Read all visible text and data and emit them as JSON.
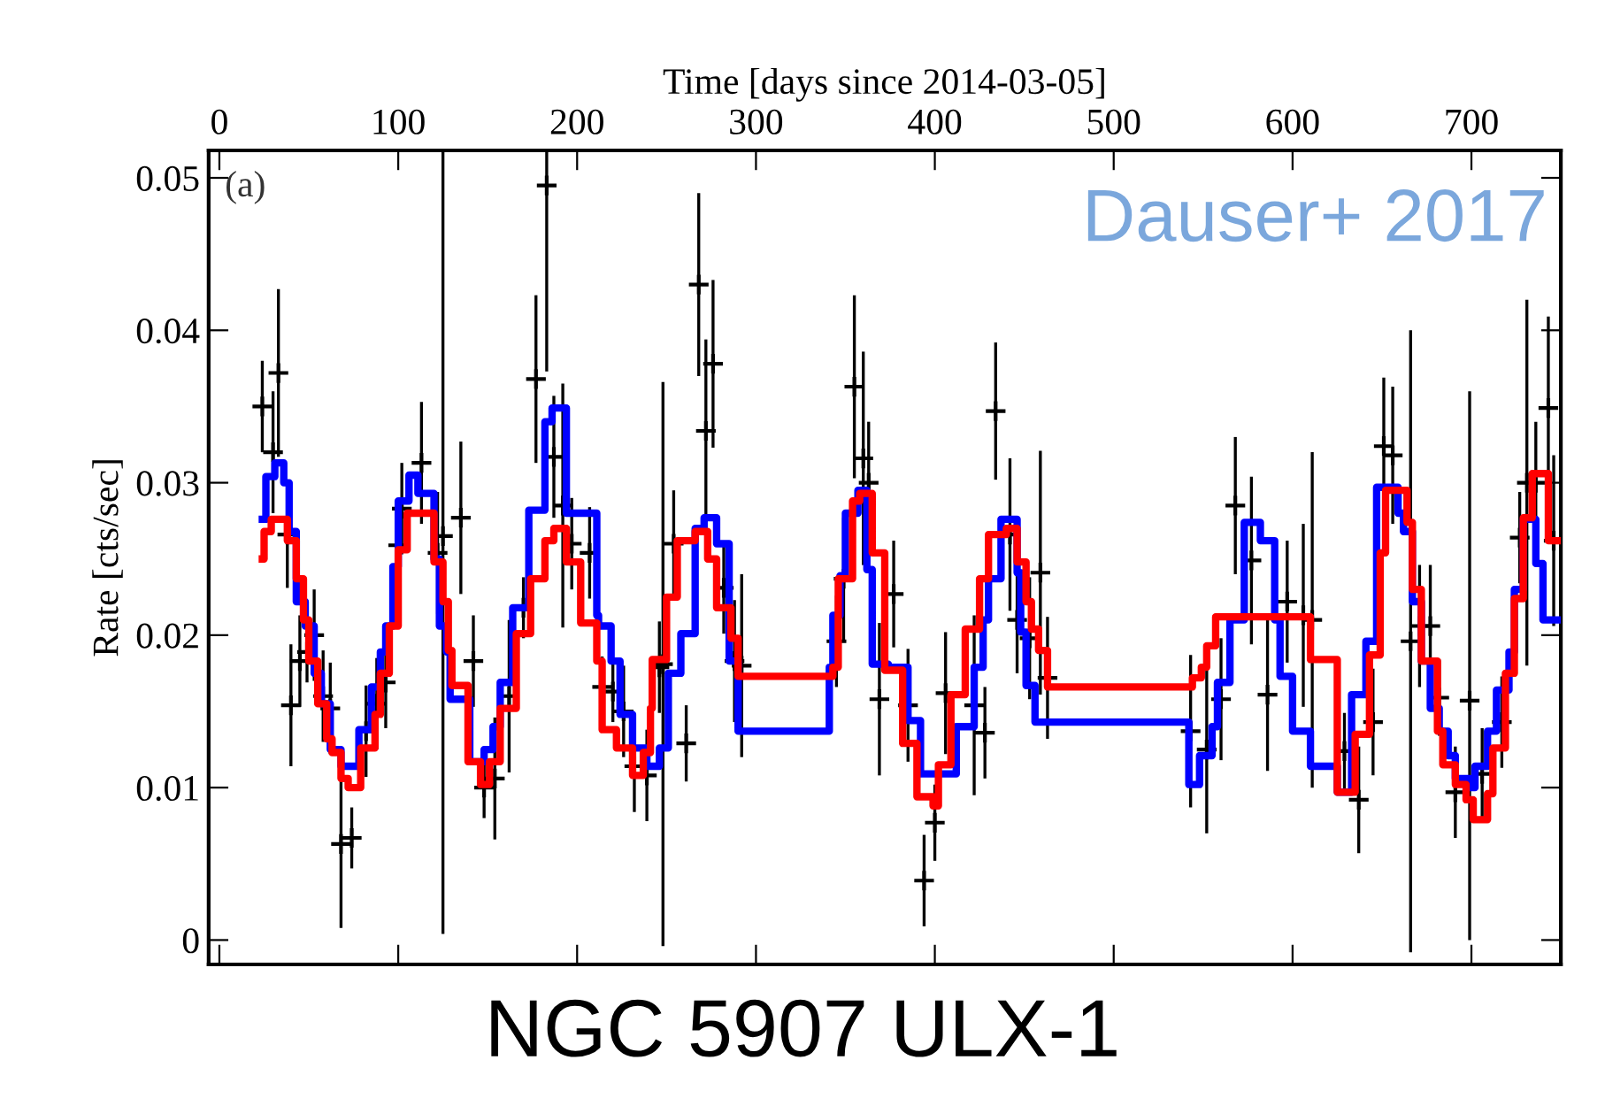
{
  "chart_data": {
    "type": "step",
    "title": "NGC 5907 ULX-1",
    "xlabel": "Time [days since 2014-03-05]",
    "ylabel": "Rate [cts/sec]",
    "annotations": [
      "(a)",
      "Dauser+ 2017"
    ],
    "xlim": [
      -6,
      750
    ],
    "xticks": [
      0,
      100,
      200,
      300,
      400,
      500,
      600,
      700
    ],
    "ylim": [
      -0.0016,
      0.0518
    ],
    "yticks": [
      0,
      0.01,
      0.02,
      0.03,
      0.04,
      0.05
    ],
    "grid": false,
    "marker": "none",
    "series": [
      {
        "color": "#0000ff",
        "x": [
          24,
          26,
          31,
          36,
          39,
          43,
          48,
          53,
          57,
          62,
          68,
          78,
          85,
          90,
          93,
          97,
          100,
          106,
          111,
          120,
          123,
          127,
          129,
          140,
          148,
          153,
          157,
          164,
          173,
          182,
          186,
          194,
          204,
          211,
          212,
          219,
          224,
          231,
          239,
          246,
          251,
          258,
          266,
          271,
          278,
          285,
          290,
          341,
          343,
          347,
          350,
          357,
          362,
          365,
          374,
          385,
          392,
          399,
          412,
          422,
          427,
          430,
          437,
          446,
          448,
          451,
          456,
          461,
          542,
          548,
          555,
          558,
          565,
          573,
          582,
          590,
          593,
          600,
          610,
          625,
          633,
          641,
          647,
          659,
          662,
          667,
          672,
          677,
          682,
          687,
          691,
          699,
          702,
          709,
          714,
          721,
          724,
          729,
          736,
          740,
          745,
          748
        ],
        "values": [
          0.0276,
          0.0304,
          0.0313,
          0.03,
          0.0268,
          0.0222,
          0.0206,
          0.0175,
          0.0155,
          0.0125,
          0.0114,
          0.0138,
          0.0166,
          0.0189,
          0.0206,
          0.0245,
          0.0288,
          0.0305,
          0.0293,
          0.025,
          0.0206,
          0.0189,
          0.0158,
          0.0117,
          0.0125,
          0.014,
          0.0169,
          0.0218,
          0.0282,
          0.034,
          0.0349,
          0.028,
          0.028,
          0.0213,
          0.0206,
          0.0183,
          0.0148,
          0.0126,
          0.0114,
          0.0126,
          0.0175,
          0.0201,
          0.027,
          0.0277,
          0.026,
          0.0183,
          0.0137,
          0.0179,
          0.0213,
          0.0239,
          0.028,
          0.0295,
          0.0243,
          0.0181,
          0.0179,
          0.0144,
          0.0109,
          0.0109,
          0.014,
          0.0179,
          0.021,
          0.0237,
          0.0276,
          0.0241,
          0.0202,
          0.0167,
          0.0143,
          0.0143,
          0.0102,
          0.0121,
          0.014,
          0.0169,
          0.021,
          0.0274,
          0.0262,
          0.021,
          0.0173,
          0.0137,
          0.0114,
          0.0097,
          0.0161,
          0.0196,
          0.0297,
          0.028,
          0.0268,
          0.0222,
          0.0183,
          0.0152,
          0.0137,
          0.0121,
          0.0106,
          0.01,
          0.0114,
          0.0137,
          0.0164,
          0.0189,
          0.023,
          0.0276,
          0.0247,
          0.021,
          0.021,
          0.021
        ]
      },
      {
        "color": "#ff0000",
        "x": [
          24,
          25,
          29,
          38,
          43,
          47,
          50,
          55,
          60,
          63,
          68,
          72,
          79,
          87,
          90,
          95,
          100,
          105,
          120,
          125,
          128,
          130,
          139,
          146,
          151,
          157,
          166,
          174,
          182,
          187,
          194,
          202,
          211,
          214,
          222,
          231,
          237,
          241,
          242,
          250,
          256,
          266,
          273,
          278,
          286,
          290,
          343,
          346,
          354,
          358,
          365,
          372,
          382,
          390,
          399,
          402,
          409,
          417,
          425,
          430,
          440,
          446,
          451,
          454,
          458,
          463,
          544,
          549,
          552,
          557,
          610,
          625,
          635,
          643,
          649,
          652,
          664,
          667,
          672,
          681,
          684,
          691,
          697,
          701,
          709,
          712,
          719,
          724,
          729,
          734,
          743,
          748
        ],
        "values": [
          0.025,
          0.0268,
          0.0276,
          0.0262,
          0.0237,
          0.021,
          0.0183,
          0.0155,
          0.0132,
          0.0123,
          0.0106,
          0.01,
          0.0126,
          0.0148,
          0.0175,
          0.0206,
          0.0256,
          0.028,
          0.0248,
          0.0222,
          0.019,
          0.0167,
          0.0117,
          0.0102,
          0.0117,
          0.0152,
          0.0201,
          0.0237,
          0.0262,
          0.027,
          0.0248,
          0.0208,
          0.0183,
          0.0138,
          0.0126,
          0.0108,
          0.0123,
          0.0152,
          0.0184,
          0.0225,
          0.0262,
          0.0268,
          0.025,
          0.0218,
          0.0198,
          0.0173,
          0.0179,
          0.0237,
          0.0288,
          0.0293,
          0.0254,
          0.0177,
          0.0129,
          0.0094,
          0.0088,
          0.0115,
          0.0161,
          0.0204,
          0.0237,
          0.0266,
          0.027,
          0.0248,
          0.0222,
          0.0204,
          0.019,
          0.0166,
          0.0172,
          0.0179,
          0.0193,
          0.0212,
          0.0184,
          0.0097,
          0.0135,
          0.0187,
          0.0254,
          0.0295,
          0.0274,
          0.023,
          0.0183,
          0.0137,
          0.0115,
          0.0102,
          0.0092,
          0.0079,
          0.0096,
          0.0126,
          0.0175,
          0.0224,
          0.0277,
          0.0306,
          0.0262,
          0.0262
        ]
      },
      {
        "type": "scatter",
        "color": "#000000",
        "marker": "cross",
        "x": [
          24,
          30,
          33,
          38,
          40,
          45,
          49,
          53,
          58,
          62,
          68,
          74,
          82,
          88,
          93,
          100,
          102,
          113,
          122,
          125,
          135,
          142,
          148,
          154,
          162,
          170,
          177,
          183,
          187,
          192,
          197,
          207,
          214,
          220,
          226,
          232,
          239,
          246,
          248,
          254,
          261,
          268,
          272,
          276,
          282,
          288,
          292,
          345,
          349,
          355,
          360,
          363,
          369,
          377,
          385,
          394,
          400,
          406,
          422,
          428,
          434,
          442,
          446,
          453,
          459,
          463,
          543,
          552,
          560,
          568,
          577,
          586,
          597,
          606,
          611,
          629,
          637,
          645,
          651,
          656,
          666,
          671,
          677,
          682,
          691,
          699,
          706,
          717,
          727,
          731,
          736,
          743,
          746
        ],
        "values": [
          0.035,
          0.032,
          0.0372,
          0.0266,
          0.0154,
          0.0183,
          0.0189,
          0.02,
          0.016,
          0.0152,
          0.0063,
          0.0067,
          0.0137,
          0.0155,
          0.0169,
          0.0259,
          0.0283,
          0.0313,
          0.0254,
          0.0265,
          0.0277,
          0.0183,
          0.01,
          0.0106,
          0.016,
          0.0218,
          0.0368,
          0.0495,
          0.0317,
          0.0285,
          0.026,
          0.0254,
          0.0166,
          0.0163,
          0.015,
          0.0114,
          0.0108,
          0.0179,
          0.0181,
          0.026,
          0.0129,
          0.043,
          0.0334,
          0.0378,
          0.0231,
          0.0183,
          0.018,
          0.0196,
          0.0237,
          0.0363,
          0.0316,
          0.03,
          0.0158,
          0.0227,
          0.0154,
          0.0039,
          0.0077,
          0.0162,
          0.0154,
          0.0136,
          0.0347,
          0.0266,
          0.021,
          0.0198,
          0.0241,
          0.0172,
          0.0137,
          0.0125,
          0.0158,
          0.0285,
          0.0249,
          0.0161,
          0.0222,
          0.0213,
          0.021,
          0.0124,
          0.0092,
          0.0143,
          0.0324,
          0.0318,
          0.0196,
          0.0206,
          0.0206,
          0.0159,
          0.0097,
          0.0157,
          0.0109,
          0.0143,
          0.0264,
          0.03,
          0.03,
          0.0349,
          0.0262
        ],
        "errors": [
          0.003,
          0.004,
          0.0055,
          0.0035,
          0.004,
          0.003,
          0.002,
          0.003,
          0.003,
          0.003,
          0.0055,
          0.002,
          0.003,
          0.003,
          0.003,
          0.003,
          0.003,
          0.004,
          0.004,
          [
            0.0004,
            0.0518
          ],
          0.005,
          0.003,
          0.002,
          0.004,
          0.005,
          0.002,
          0.0055,
          [
            0.0373,
            0.0518
          ],
          0.004,
          0.008,
          0.003,
          0.003,
          0.002,
          0.002,
          0.003,
          0.003,
          0.003,
          0.003,
          0.0185,
          0.0035,
          0.0025,
          0.006,
          0.006,
          0.0055,
          0.003,
          0.004,
          0.006,
          0.003,
          0.004,
          0.006,
          0.007,
          0.004,
          0.005,
          0.0035,
          0.0037,
          0.003,
          0.0025,
          0.004,
          0.0059,
          0.003,
          0.0045,
          0.005,
          0.0035,
          0.004,
          0.008,
          0.004,
          0.005,
          0.0055,
          0.004,
          0.0045,
          0.0055,
          0.005,
          0.004,
          0.006,
          0.011,
          0.0025,
          0.0035,
          0.0035,
          0.0045,
          0.0045,
          0.0204,
          0.004,
          0.004,
          0.0025,
          0.003,
          [
            0.0,
            0.036
          ],
          0.003,
          0.003,
          0.003,
          0.012,
          0.004,
          0.006,
          0.0056
        ]
      }
    ]
  }
}
